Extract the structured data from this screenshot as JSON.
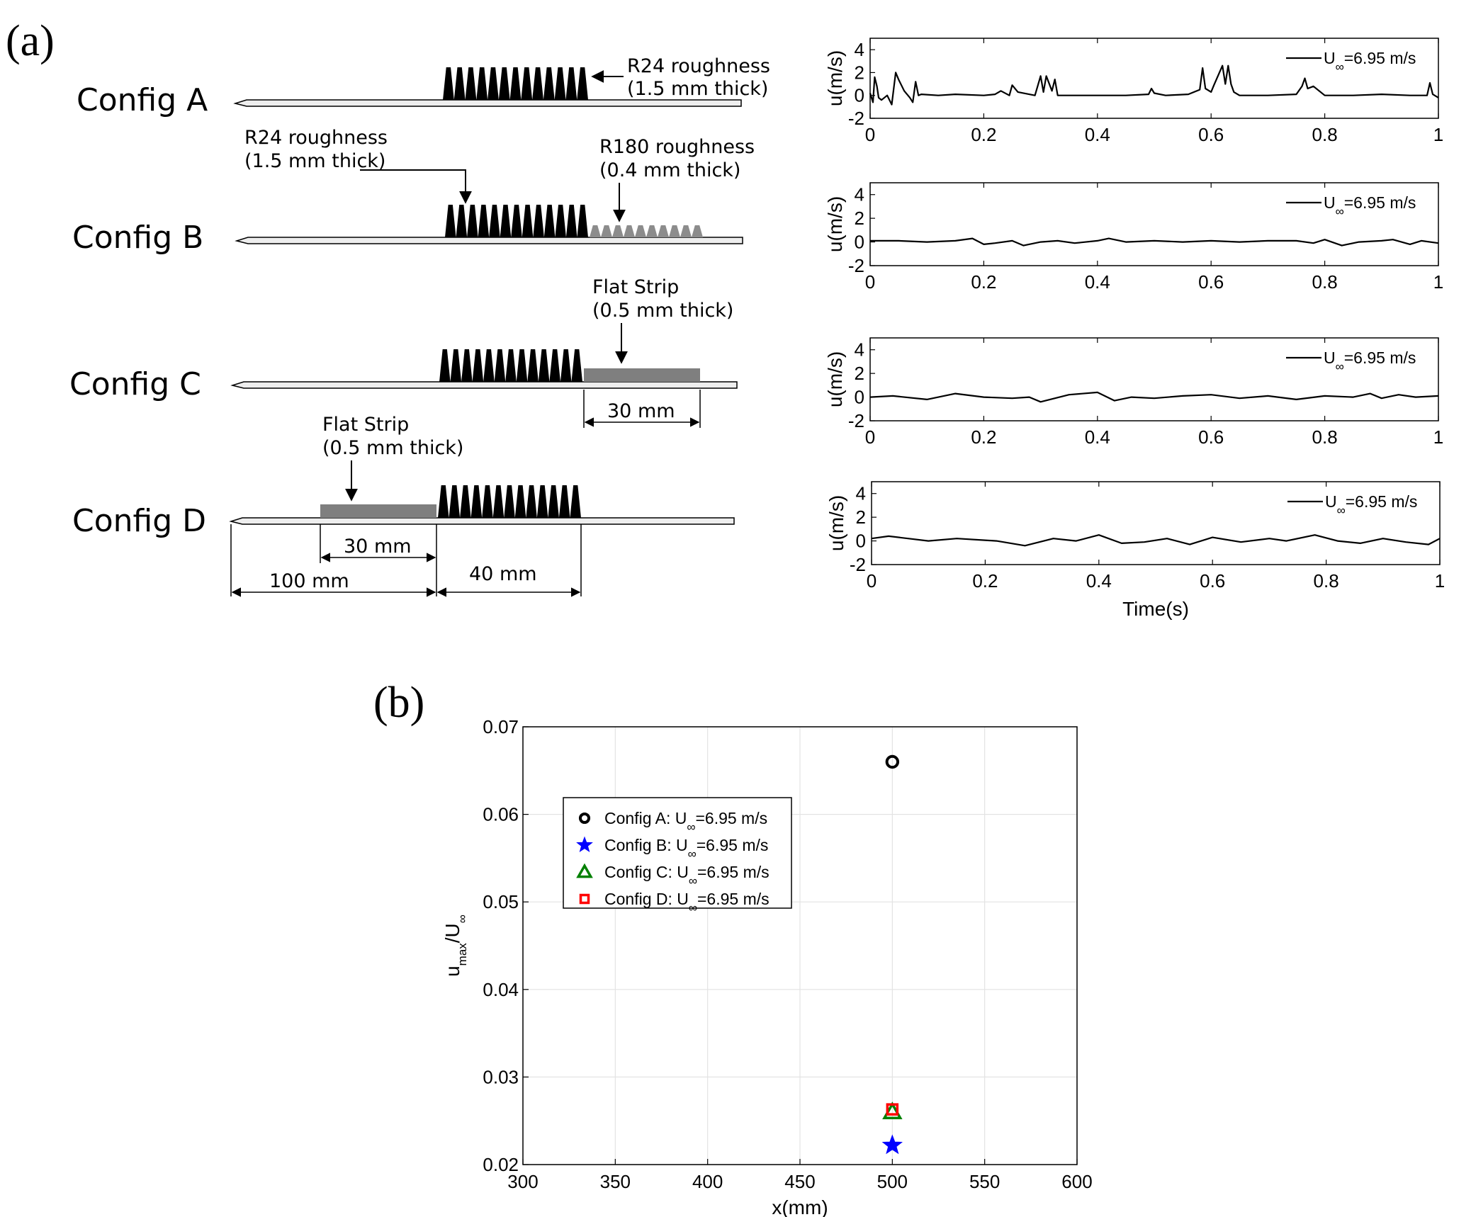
{
  "panel_a_label": "(a)",
  "panel_b_label": "(b)",
  "schematic": {
    "config_a": {
      "label": "Config A",
      "ann_line1": "R24 roughness",
      "ann_line2": "(1.5 mm thick)"
    },
    "config_b": {
      "label": "Config B",
      "ann1_line1": "R24 roughness",
      "ann1_line2": "(1.5 mm thick)",
      "ann2_line1": "R180 roughness",
      "ann2_line2": "(0.4 mm thick)"
    },
    "config_c": {
      "label": "Config C",
      "ann_line1": "Flat Strip",
      "ann_line2": "(0.5 mm thick)",
      "dim": "30 mm"
    },
    "config_d": {
      "label": "Config D",
      "ann_line1": "Flat Strip",
      "ann_line2": "(0.5 mm thick)",
      "dim_strip": "30 mm",
      "dim_lead": "100 mm",
      "dim_rough": "40 mm"
    }
  },
  "colors": {
    "axis": "#000000",
    "grid": "#e3e3e3",
    "strip": "#7f7f7f",
    "r180": "#8c8c8c",
    "plate_fill": "#eeeeee",
    "config_a": "#000000",
    "config_b": "#0000ff",
    "config_c": "#008000",
    "config_d": "#ff0000"
  },
  "chart_data": [
    {
      "type": "line",
      "id": "ts_config_a",
      "ylabel": "u(m/s)",
      "xlabel": "",
      "xlim": [
        0,
        1
      ],
      "ylim": [
        -2,
        5
      ],
      "xticks": [
        "0",
        "0.2",
        "0.4",
        "0.6",
        "0.8",
        "1"
      ],
      "yticks": [
        "-2",
        "0",
        "2",
        "4"
      ],
      "legend": {
        "prefix": "U",
        "sub": "∞",
        "suffix": "=6.95 m/s"
      },
      "series": [
        {
          "name": "U∞=6.95 m/s",
          "t": [
            0,
            0.005,
            0.008,
            0.012,
            0.015,
            0.02,
            0.03,
            0.038,
            0.045,
            0.05,
            0.06,
            0.07,
            0.075,
            0.08,
            0.085,
            0.09,
            0.12,
            0.15,
            0.2,
            0.22,
            0.23,
            0.245,
            0.25,
            0.26,
            0.29,
            0.3,
            0.305,
            0.31,
            0.32,
            0.325,
            0.33,
            0.34,
            0.38,
            0.42,
            0.45,
            0.49,
            0.495,
            0.5,
            0.52,
            0.56,
            0.58,
            0.585,
            0.59,
            0.6,
            0.605,
            0.62,
            0.625,
            0.63,
            0.635,
            0.64,
            0.65,
            0.7,
            0.75,
            0.76,
            0.765,
            0.77,
            0.78,
            0.8,
            0.85,
            0.9,
            0.95,
            0.98,
            0.985,
            0.99,
            1.0
          ],
          "u": [
            0.2,
            -0.6,
            1.6,
            0.8,
            -0.2,
            -0.4,
            0.0,
            -0.8,
            2.0,
            1.4,
            0.4,
            -0.2,
            -0.6,
            1.2,
            0.0,
            0.1,
            0.0,
            0.1,
            0.0,
            0.1,
            0.4,
            0.0,
            0.9,
            0.3,
            0.0,
            1.7,
            0.3,
            1.7,
            0.4,
            1.4,
            0.0,
            0.0,
            0.0,
            0.0,
            0.0,
            0.1,
            0.6,
            0.2,
            0.0,
            0.1,
            0.5,
            2.4,
            0.6,
            0.3,
            0.9,
            2.6,
            1.0,
            2.6,
            1.0,
            0.3,
            0.0,
            0.0,
            0.1,
            0.8,
            1.5,
            0.6,
            0.8,
            0.0,
            0.0,
            0.1,
            0.0,
            0.0,
            1.1,
            0.1,
            -0.2
          ]
        }
      ]
    },
    {
      "type": "line",
      "id": "ts_config_b",
      "ylabel": "u(m/s)",
      "xlabel": "",
      "xlim": [
        0,
        1
      ],
      "ylim": [
        -2,
        5
      ],
      "xticks": [
        "0",
        "0.2",
        "0.4",
        "0.6",
        "0.8",
        "1"
      ],
      "yticks": [
        "-2",
        "0",
        "2",
        "4"
      ],
      "legend": {
        "prefix": "U",
        "sub": "∞",
        "suffix": "=6.95 m/s"
      },
      "series": [
        {
          "name": "U∞=6.95 m/s",
          "t": [
            0,
            0.05,
            0.1,
            0.15,
            0.18,
            0.2,
            0.22,
            0.25,
            0.27,
            0.3,
            0.33,
            0.36,
            0.4,
            0.42,
            0.45,
            0.5,
            0.55,
            0.6,
            0.65,
            0.7,
            0.75,
            0.78,
            0.8,
            0.83,
            0.86,
            0.9,
            0.92,
            0.95,
            0.97,
            1.0
          ],
          "u": [
            0.1,
            0.1,
            0.0,
            0.1,
            0.3,
            -0.2,
            -0.1,
            0.1,
            -0.3,
            0.0,
            0.1,
            -0.1,
            0.1,
            0.3,
            0.0,
            0.1,
            0.0,
            0.1,
            0.0,
            0.1,
            0.1,
            -0.1,
            0.2,
            -0.3,
            0.0,
            0.1,
            0.2,
            -0.2,
            0.1,
            -0.1
          ]
        }
      ]
    },
    {
      "type": "line",
      "id": "ts_config_c",
      "ylabel": "u(m/s)",
      "xlabel": "",
      "xlim": [
        0,
        1
      ],
      "ylim": [
        -2,
        5
      ],
      "xticks": [
        "0",
        "0.2",
        "0.4",
        "0.6",
        "0.8",
        "1"
      ],
      "yticks": [
        "-2",
        "0",
        "2",
        "4"
      ],
      "legend": {
        "prefix": "U",
        "sub": "∞",
        "suffix": "=6.95 m/s"
      },
      "series": [
        {
          "name": "U∞=6.95 m/s",
          "t": [
            0,
            0.04,
            0.1,
            0.15,
            0.2,
            0.25,
            0.28,
            0.3,
            0.35,
            0.4,
            0.43,
            0.46,
            0.5,
            0.55,
            0.6,
            0.65,
            0.7,
            0.75,
            0.8,
            0.85,
            0.88,
            0.9,
            0.93,
            0.96,
            1.0
          ],
          "u": [
            0.0,
            0.1,
            -0.2,
            0.3,
            0.0,
            -0.1,
            0.0,
            -0.4,
            0.2,
            0.4,
            -0.3,
            0.0,
            -0.1,
            0.1,
            0.2,
            -0.1,
            0.1,
            -0.2,
            0.1,
            0.0,
            0.3,
            -0.1,
            0.2,
            0.0,
            0.1
          ]
        }
      ]
    },
    {
      "type": "line",
      "id": "ts_config_d",
      "ylabel": "u(m/s)",
      "xlabel": "Time(s)",
      "xlim": [
        0,
        1
      ],
      "ylim": [
        -2,
        5
      ],
      "xticks": [
        "0",
        "0.2",
        "0.4",
        "0.6",
        "0.8",
        "1"
      ],
      "yticks": [
        "-2",
        "0",
        "2",
        "4"
      ],
      "legend": {
        "prefix": "U",
        "sub": "∞",
        "suffix": "=6.95 m/s"
      },
      "series": [
        {
          "name": "U∞=6.95 m/s",
          "t": [
            0,
            0.03,
            0.1,
            0.15,
            0.22,
            0.27,
            0.32,
            0.36,
            0.4,
            0.44,
            0.48,
            0.52,
            0.56,
            0.6,
            0.65,
            0.7,
            0.73,
            0.78,
            0.82,
            0.86,
            0.9,
            0.94,
            0.98,
            1.0
          ],
          "u": [
            0.2,
            0.4,
            0.0,
            0.2,
            0.0,
            -0.4,
            0.2,
            0.0,
            0.5,
            -0.2,
            -0.1,
            0.2,
            -0.3,
            0.3,
            -0.1,
            0.2,
            0.0,
            0.5,
            0.0,
            -0.2,
            0.2,
            -0.1,
            -0.3,
            0.2
          ]
        }
      ]
    },
    {
      "type": "scatter",
      "id": "umax_vs_x",
      "xlabel": "x(mm)",
      "ylabel": {
        "main": "u",
        "sub_main": "max",
        "slash": "/U",
        "sub_inf": "∞"
      },
      "xlim": [
        300,
        600
      ],
      "ylim": [
        0.02,
        0.07
      ],
      "xticks": [
        "300",
        "350",
        "400",
        "450",
        "500",
        "550",
        "600"
      ],
      "yticks": [
        "0.02",
        "0.03",
        "0.04",
        "0.05",
        "0.06",
        "0.07"
      ],
      "series": [
        {
          "name": "Config A",
          "marker": "circle",
          "x": [
            500
          ],
          "y": [
            0.066
          ],
          "legend": {
            "prefix": "Config A: U",
            "sub": "∞",
            "suffix": "=6.95 m/s"
          }
        },
        {
          "name": "Config B",
          "marker": "star",
          "x": [
            500
          ],
          "y": [
            0.0222
          ],
          "legend": {
            "prefix": "Config B: U",
            "sub": "∞",
            "suffix": "=6.95 m/s"
          }
        },
        {
          "name": "Config C",
          "marker": "triangle",
          "x": [
            500
          ],
          "y": [
            0.026
          ],
          "legend": {
            "prefix": "Config C: U",
            "sub": "∞",
            "suffix": "=6.95 m/s"
          }
        },
        {
          "name": "Config D",
          "marker": "square",
          "x": [
            500
          ],
          "y": [
            0.0263
          ],
          "legend": {
            "prefix": "Config D: U",
            "sub": "∞",
            "suffix": "=6.95 m/s"
          }
        }
      ]
    }
  ]
}
